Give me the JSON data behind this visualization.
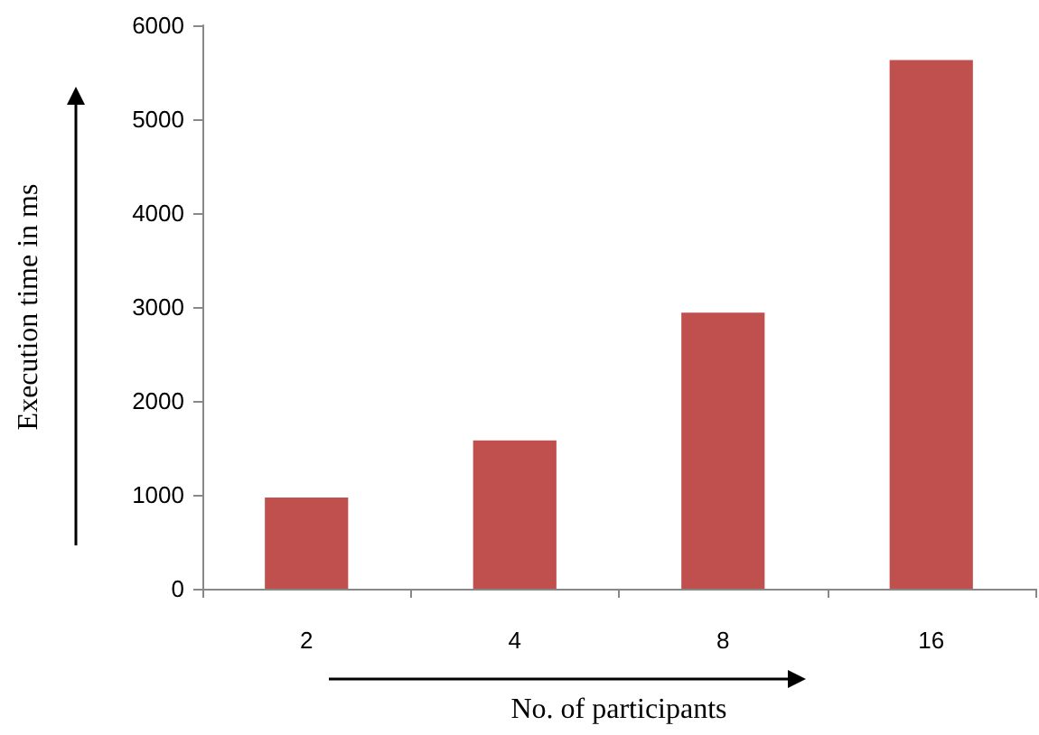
{
  "chart_data": {
    "type": "bar",
    "xlabel": "No. of participants",
    "ylabel": "Execution time in ms",
    "categories": [
      "2",
      "4",
      "8",
      "16"
    ],
    "values": [
      970,
      1580,
      2940,
      5630
    ],
    "color": "#c0504d",
    "ylim": [
      0,
      6000
    ],
    "yticks": [
      0,
      1000,
      2000,
      3000,
      4000,
      5000,
      6000
    ],
    "grid": false
  }
}
